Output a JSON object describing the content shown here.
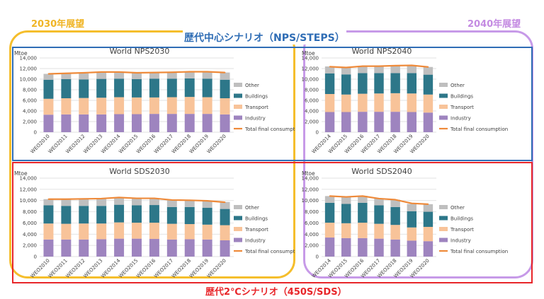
{
  "labels": {
    "period_2030": "2030年展望",
    "period_2040": "2040年展望",
    "scenario_nps": "歴代中心シナリオ（NPS/STEPS）",
    "scenario_sds": "歴代2℃シナリオ（450S/SDS）"
  },
  "colors": {
    "industry": "#9e84bf",
    "transport": "#f8c399",
    "buildings": "#2d7789",
    "other": "#bfbfbf",
    "total_line": "#ee8a3a",
    "frame_2030": "#f5be2c",
    "frame_2040": "#c79ae8",
    "frame_nps": "#2f6db5",
    "frame_sds": "#e8262a"
  },
  "legend": [
    "Other",
    "Buildings",
    "Transport",
    "Industry",
    "Total final consumption"
  ],
  "chart_data": [
    {
      "type": "bar",
      "title": "World NPS2030",
      "ylabel": "Mtoe",
      "ylim": [
        0,
        14000
      ],
      "yticks": [
        "0",
        "2,000",
        "4,000",
        "6,000",
        "8,000",
        "10,000",
        "12,000",
        "14,000"
      ],
      "stacked": true,
      "categories": [
        "WEO2010",
        "WEO2011",
        "WEO2012",
        "WEO2013",
        "WEO2014",
        "WEO2015",
        "WEO2016",
        "WEO2017",
        "WEO2018",
        "WEO2019",
        "WEO2020"
      ],
      "series": [
        {
          "name": "Industry",
          "values": [
            3300,
            3350,
            3350,
            3350,
            3400,
            3400,
            3450,
            3450,
            3450,
            3450,
            3350
          ]
        },
        {
          "name": "Transport",
          "values": [
            3000,
            3050,
            3100,
            3150,
            3200,
            3150,
            3100,
            3150,
            3200,
            3150,
            3050
          ]
        },
        {
          "name": "Buildings",
          "values": [
            3600,
            3600,
            3500,
            3550,
            3500,
            3450,
            3550,
            3500,
            3500,
            3500,
            3500
          ]
        },
        {
          "name": "Other",
          "values": [
            1100,
            1100,
            1150,
            1200,
            1250,
            1200,
            1150,
            1200,
            1150,
            1300,
            1350
          ]
        }
      ],
      "line": {
        "name": "Total final consumption",
        "values": [
          11000,
          11100,
          11200,
          11350,
          11350,
          11200,
          11250,
          11300,
          11400,
          11400,
          11250
        ]
      }
    },
    {
      "type": "bar",
      "title": "World NPS2040",
      "ylabel": "Mtoe",
      "ylim": [
        0,
        14000
      ],
      "yticks": [
        "0",
        "2,000",
        "4,000",
        "6,000",
        "8,000",
        "10,000",
        "12,000",
        "14,000"
      ],
      "stacked": true,
      "categories": [
        "WEO2014",
        "WEO2015",
        "WEO2016",
        "WEO2017",
        "WEO2018",
        "WEO2019",
        "WEO2020"
      ],
      "series": [
        {
          "name": "Industry",
          "values": [
            3800,
            3800,
            3850,
            3850,
            3850,
            3800,
            3700
          ]
        },
        {
          "name": "Transport",
          "values": [
            3400,
            3300,
            3400,
            3450,
            3500,
            3500,
            3400
          ]
        },
        {
          "name": "Buildings",
          "values": [
            3900,
            3800,
            3900,
            3850,
            3800,
            3850,
            3750
          ]
        },
        {
          "name": "Other",
          "values": [
            1300,
            1300,
            1350,
            1400,
            1450,
            1450,
            1450
          ]
        }
      ],
      "line": {
        "name": "Total final consumption",
        "values": [
          12350,
          12200,
          12450,
          12450,
          12550,
          12600,
          12300
        ]
      }
    },
    {
      "type": "bar",
      "title": "World SDS2030",
      "ylabel": "Mtoe",
      "ylim": [
        0,
        14000
      ],
      "yticks": [
        "0",
        "2,000",
        "4,000",
        "6,000",
        "8,000",
        "10,000",
        "12,000",
        "14,000"
      ],
      "stacked": true,
      "categories": [
        "WEO2010",
        "WEO2011",
        "WEO2012",
        "WEO2013",
        "WEO2014",
        "WEO2015",
        "WEO2016",
        "WEO2017",
        "WEO2018",
        "WEO2019",
        "WEO2020"
      ],
      "series": [
        {
          "name": "Industry",
          "values": [
            3050,
            3050,
            3050,
            3100,
            3200,
            3200,
            3150,
            3050,
            3100,
            3050,
            2900
          ]
        },
        {
          "name": "Transport",
          "values": [
            2850,
            2800,
            2850,
            2800,
            2900,
            2850,
            2900,
            2800,
            2700,
            2650,
            2700
          ]
        },
        {
          "name": "Buildings",
          "values": [
            3250,
            3200,
            3150,
            3150,
            3150,
            3100,
            3150,
            3000,
            3050,
            3000,
            2900
          ]
        },
        {
          "name": "Other",
          "values": [
            1100,
            1150,
            1200,
            1250,
            1250,
            1200,
            1150,
            1200,
            1200,
            1200,
            1250
          ]
        }
      ],
      "line": {
        "name": "Total final consumption",
        "values": [
          10250,
          10250,
          10300,
          10350,
          10550,
          10400,
          10400,
          10100,
          10050,
          9950,
          9700
        ]
      }
    },
    {
      "type": "bar",
      "title": "World SDS2040",
      "ylabel": "Mtoe",
      "ylim": [
        0,
        14000
      ],
      "yticks": [
        "0",
        "2,000",
        "4,000",
        "6,000",
        "8,000",
        "10,000",
        "12,000",
        "14,000"
      ],
      "stacked": true,
      "categories": [
        "WEO2014",
        "WEO2015",
        "WEO2016",
        "WEO2017",
        "WEO2018",
        "WEO2019",
        "WEO2020"
      ],
      "series": [
        {
          "name": "Industry",
          "values": [
            3400,
            3300,
            3300,
            3200,
            3050,
            2850,
            2750
          ]
        },
        {
          "name": "Transport",
          "values": [
            2650,
            2650,
            2750,
            2650,
            2600,
            2350,
            2550
          ]
        },
        {
          "name": "Buildings",
          "values": [
            3550,
            3450,
            3550,
            3300,
            3200,
            2900,
            2700
          ]
        },
        {
          "name": "Other",
          "values": [
            1200,
            1250,
            1250,
            1250,
            1300,
            1300,
            1350
          ]
        }
      ],
      "line": {
        "name": "Total final consumption",
        "values": [
          10800,
          10650,
          10800,
          10350,
          10150,
          9500,
          9350
        ]
      }
    }
  ]
}
